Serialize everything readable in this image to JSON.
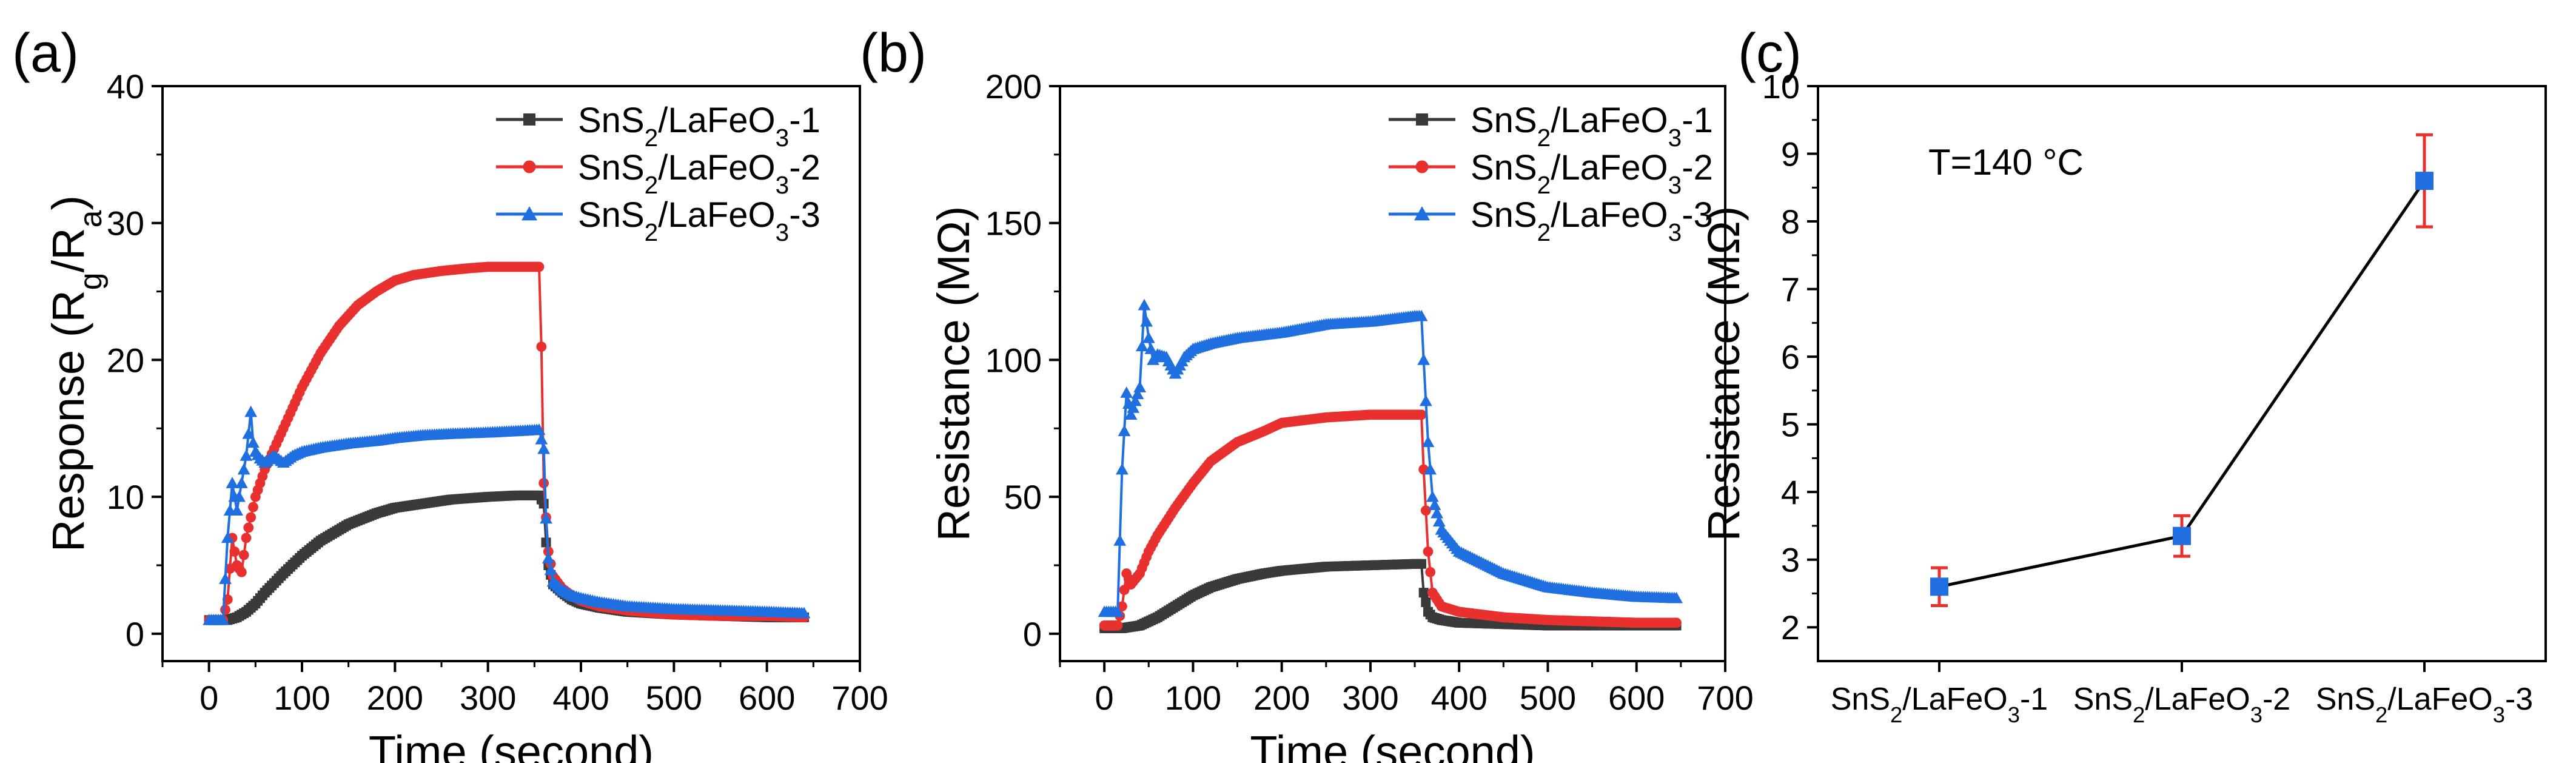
{
  "figure": {
    "panels": [
      "(a)",
      "(b)",
      "(c)"
    ]
  },
  "colors": {
    "series1": "#3a3a3a",
    "series2": "#e8312f",
    "series3": "#1f6fe0",
    "line_c": "#000000",
    "marker_c": "#1f6fe0",
    "error_c": "#e8312f"
  },
  "chart_data": [
    {
      "panel": "(a)",
      "type": "scatter",
      "xlabel": "Time (second)",
      "ylabel": "Response (Rg/Ra)",
      "xlim": [
        -50,
        700
      ],
      "ylim": [
        -2,
        40
      ],
      "xticks": [
        0,
        100,
        200,
        300,
        400,
        500,
        600,
        700
      ],
      "yticks": [
        0,
        10,
        20,
        30,
        40
      ],
      "legend_position": "top-right",
      "series": [
        {
          "name": "SnS2/LaFeO3-1",
          "marker": "square",
          "x": [
            0,
            20,
            30,
            40,
            50,
            60,
            80,
            100,
            120,
            150,
            180,
            200,
            230,
            260,
            300,
            330,
            355,
            360,
            362,
            365,
            370,
            380,
            390,
            400,
            420,
            450,
            500,
            550,
            600,
            640
          ],
          "y": [
            1.0,
            1.0,
            1.2,
            1.6,
            2.2,
            3.0,
            4.4,
            5.7,
            6.8,
            8.0,
            8.8,
            9.2,
            9.5,
            9.8,
            10.0,
            10.1,
            10.1,
            9.5,
            7.0,
            5.0,
            3.6,
            3.0,
            2.5,
            2.2,
            1.9,
            1.6,
            1.4,
            1.3,
            1.2,
            1.2
          ]
        },
        {
          "name": "SnS2/LaFeO3-2",
          "marker": "circle",
          "x": [
            0,
            15,
            20,
            25,
            30,
            35,
            40,
            50,
            60,
            70,
            80,
            90,
            100,
            120,
            140,
            160,
            180,
            200,
            220,
            250,
            280,
            300,
            330,
            355,
            358,
            360,
            365,
            370,
            380,
            390,
            400,
            420,
            450,
            500,
            550,
            600,
            640
          ],
          "y": [
            1.0,
            1.0,
            2.5,
            7.0,
            5.0,
            4.5,
            7.0,
            10.0,
            12.0,
            13.5,
            15.0,
            16.5,
            18.0,
            20.5,
            22.5,
            24.0,
            25.0,
            25.8,
            26.2,
            26.5,
            26.7,
            26.8,
            26.8,
            26.8,
            19.8,
            11.0,
            6.0,
            4.2,
            3.3,
            2.8,
            2.4,
            2.0,
            1.7,
            1.4,
            1.3,
            1.3,
            1.2
          ]
        },
        {
          "name": "SnS2/LaFeO3-3",
          "marker": "triangle",
          "x": [
            0,
            15,
            20,
            25,
            30,
            35,
            40,
            45,
            48,
            55,
            60,
            70,
            80,
            90,
            100,
            120,
            150,
            180,
            200,
            230,
            260,
            300,
            330,
            355,
            360,
            362,
            365,
            370,
            380,
            390,
            400,
            420,
            450,
            500,
            550,
            600,
            640
          ],
          "y": [
            1.0,
            1.0,
            7.0,
            11.0,
            9.0,
            11.0,
            13.0,
            16.2,
            13.5,
            12.8,
            12.5,
            13.0,
            12.5,
            13.0,
            13.3,
            13.6,
            13.9,
            14.1,
            14.3,
            14.5,
            14.6,
            14.7,
            14.8,
            14.9,
            13.5,
            9.0,
            5.5,
            3.8,
            3.2,
            2.8,
            2.6,
            2.3,
            2.0,
            1.8,
            1.7,
            1.6,
            1.5
          ]
        }
      ]
    },
    {
      "panel": "(b)",
      "type": "scatter",
      "xlabel": "Time (second)",
      "ylabel": "Resistance (MΩ)",
      "xlim": [
        -50,
        700
      ],
      "ylim": [
        -10,
        200
      ],
      "xticks": [
        0,
        100,
        200,
        300,
        400,
        500,
        600,
        700
      ],
      "yticks": [
        0,
        50,
        100,
        150,
        200
      ],
      "legend_position": "top-right",
      "series": [
        {
          "name": "SnS2/LaFeO3-1",
          "marker": "square",
          "x": [
            0,
            20,
            40,
            60,
            80,
            100,
            120,
            150,
            180,
            200,
            250,
            300,
            350,
            358,
            360,
            365,
            370,
            380,
            400,
            450,
            500,
            550,
            600,
            645
          ],
          "y": [
            2,
            2,
            3,
            6,
            10,
            14,
            17,
            20,
            22,
            23,
            24.5,
            25,
            25.5,
            25.5,
            15,
            8,
            6,
            5,
            4,
            3.5,
            3,
            3,
            3,
            3
          ]
        },
        {
          "name": "SnS2/LaFeO3-2",
          "marker": "circle",
          "x": [
            0,
            15,
            20,
            25,
            30,
            40,
            50,
            60,
            80,
            100,
            120,
            150,
            180,
            200,
            250,
            300,
            350,
            358,
            360,
            365,
            370,
            380,
            400,
            450,
            500,
            550,
            600,
            645
          ],
          "y": [
            3,
            3,
            10,
            22,
            18,
            22,
            30,
            36,
            46,
            55,
            63,
            70,
            74,
            77,
            79,
            80,
            80,
            80,
            60,
            30,
            15,
            10,
            8,
            6,
            5,
            4.5,
            4,
            4
          ]
        },
        {
          "name": "SnS2/LaFeO3-3",
          "marker": "triangle",
          "x": [
            0,
            15,
            20,
            25,
            30,
            35,
            40,
            45,
            50,
            55,
            60,
            70,
            80,
            90,
            100,
            120,
            150,
            200,
            250,
            300,
            350,
            358,
            360,
            365,
            370,
            380,
            400,
            450,
            500,
            550,
            600,
            645
          ],
          "y": [
            8,
            8,
            60,
            88,
            80,
            85,
            90,
            120,
            108,
            100,
            102,
            101,
            95,
            101,
            104,
            106,
            108,
            110,
            113,
            114,
            116,
            116,
            100,
            70,
            50,
            38,
            30,
            22,
            17,
            15,
            13.5,
            13
          ]
        }
      ]
    },
    {
      "panel": "(c)",
      "type": "line",
      "xlabel": "",
      "ylabel": "Resistance (MΩ)",
      "ylim": [
        1.5,
        10
      ],
      "yticks": [
        2,
        3,
        4,
        5,
        6,
        7,
        8,
        9,
        10
      ],
      "categories": [
        "SnS2/LaFeO3-1",
        "SnS2/LaFeO3-2",
        "SnS2/LaFeO3-3"
      ],
      "values": [
        2.6,
        3.35,
        8.6
      ],
      "errors": [
        0.28,
        0.3,
        0.68
      ],
      "annotation": "T=140 °C"
    }
  ]
}
